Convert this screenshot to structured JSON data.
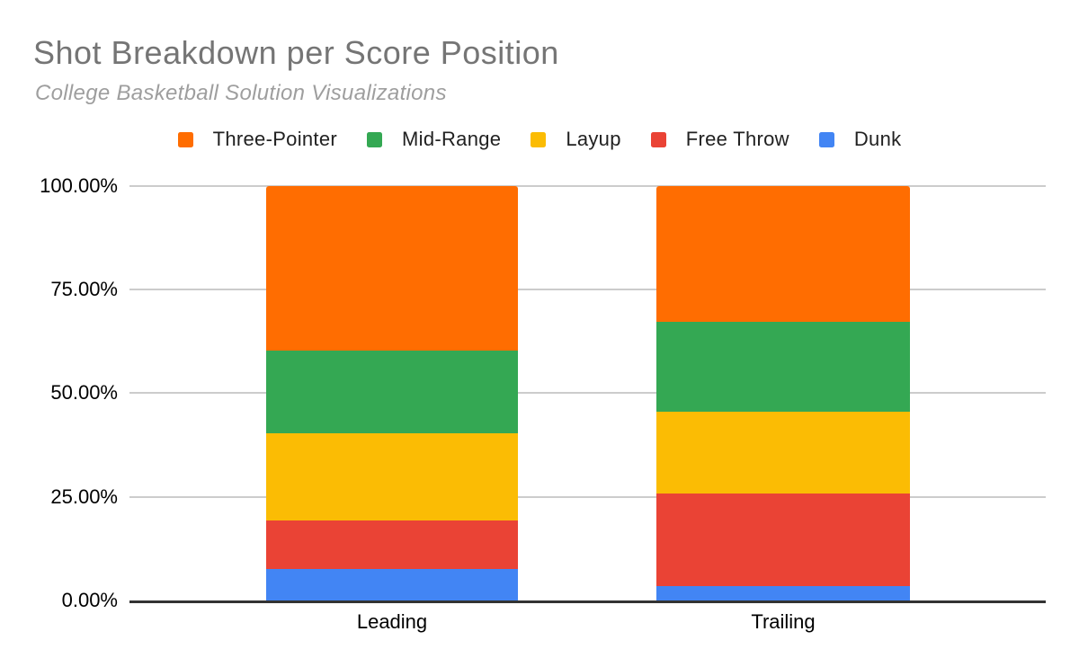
{
  "chart_data": {
    "type": "bar",
    "variant": "stacked-100-percent-column",
    "title": "Shot Breakdown per Score Position",
    "subtitle": "College Basketball Solution Visualizations",
    "categories": [
      "Leading",
      "Trailing"
    ],
    "series": [
      {
        "name": "Three-Pointer",
        "color": "#FF6D01",
        "values": [
          39.7,
          32.8
        ]
      },
      {
        "name": "Mid-Range",
        "color": "#34A853",
        "values": [
          20.1,
          21.6
        ]
      },
      {
        "name": "Layup",
        "color": "#FBBC04",
        "values": [
          20.9,
          19.9
        ]
      },
      {
        "name": "Free Throw",
        "color": "#EA4335",
        "values": [
          11.8,
          22.2
        ]
      },
      {
        "name": "Dunk",
        "color": "#4285F4",
        "values": [
          7.5,
          3.5
        ]
      }
    ],
    "stack_order_bottom_to_top": [
      "Dunk",
      "Free Throw",
      "Layup",
      "Mid-Range",
      "Three-Pointer"
    ],
    "xlabel": "",
    "ylabel": "",
    "ylim": [
      0,
      100
    ],
    "y_ticks": [
      {
        "label": "0.00%",
        "value": 0
      },
      {
        "label": "25.00%",
        "value": 25
      },
      {
        "label": "50.00%",
        "value": 50
      },
      {
        "label": "75.00%",
        "value": 75
      },
      {
        "label": "100.00%",
        "value": 100
      }
    ],
    "grid": true,
    "legend_position": "top",
    "colors": {
      "title_text": "#757575",
      "subtitle_text": "#9e9e9e",
      "legend_text": "#212121",
      "axis_text": "#000000",
      "gridline": "#cccccc",
      "axis_line": "#333333",
      "background": "#ffffff"
    }
  }
}
